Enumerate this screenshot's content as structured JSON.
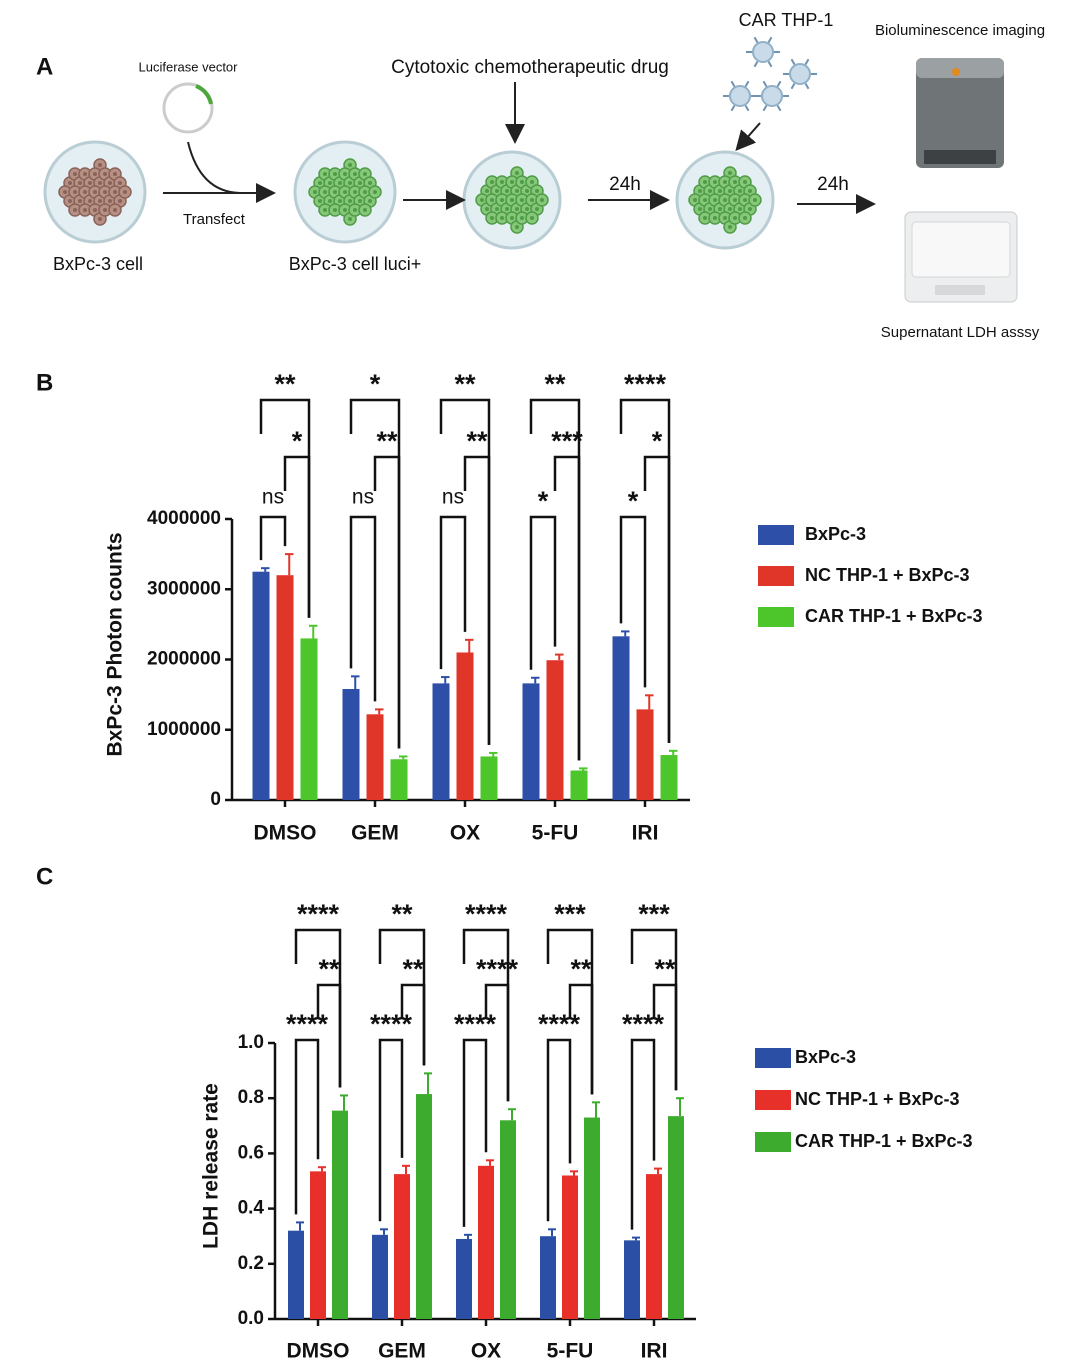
{
  "panel_labels": [
    "A",
    "B",
    "C"
  ],
  "diagram": {
    "luciferase": "Luciferase vector",
    "transfect": "Transfect",
    "cell": "BxPc-3 cell",
    "cell_luci": "BxPc-3 cell luci+",
    "drug": "Cytotoxic chemotherapeutic drug",
    "time1": "24h",
    "time2": "24h",
    "car": "CAR  THP-1",
    "imaging": "Bioluminescence imaging",
    "ldh": "Supernatant LDH asssy"
  },
  "chart_data": [
    {
      "type": "bar",
      "ylabel": "BxPc-3  Photon counts",
      "categories": [
        "DMSO",
        "GEM",
        "OX",
        "5-FU",
        "IRI"
      ],
      "series": [
        {
          "name": "BxPc-3",
          "color": "#2e4fa8",
          "values": [
            3250000,
            1580000,
            1660000,
            1660000,
            2330000
          ],
          "errors": [
            50000,
            180000,
            90000,
            80000,
            70000
          ]
        },
        {
          "name": "NC THP-1 + BxPc-3",
          "color": "#e0362a",
          "values": [
            3200000,
            1220000,
            2100000,
            1990000,
            1290000
          ],
          "errors": [
            300000,
            70000,
            180000,
            80000,
            200000
          ]
        },
        {
          "name": "CAR THP-1 + BxPc-3",
          "color": "#4cc62a",
          "values": [
            2300000,
            580000,
            620000,
            420000,
            640000
          ],
          "errors": [
            180000,
            40000,
            50000,
            30000,
            60000
          ]
        }
      ],
      "significance": [
        [
          "**",
          "*",
          "ns"
        ],
        [
          "*",
          "**",
          "ns"
        ],
        [
          "**",
          "**",
          "ns"
        ],
        [
          "**",
          "***",
          "*"
        ],
        [
          "****",
          "*",
          "*"
        ]
      ],
      "ylim": [
        0,
        4000000
      ],
      "yticks": [
        0,
        1000000,
        2000000,
        3000000,
        4000000
      ]
    },
    {
      "type": "bar",
      "ylabel": "LDH release rate",
      "categories": [
        "DMSO",
        "GEM",
        "OX",
        "5-FU",
        "IRI"
      ],
      "series": [
        {
          "name": "BxPc-3",
          "color": "#2a4fa5",
          "values": [
            0.32,
            0.305,
            0.29,
            0.3,
            0.285
          ],
          "errors": [
            0.03,
            0.02,
            0.015,
            0.025,
            0.01
          ]
        },
        {
          "name": "NC THP-1 + BxPc-3",
          "color": "#e8302a",
          "values": [
            0.535,
            0.525,
            0.555,
            0.52,
            0.525
          ],
          "errors": [
            0.015,
            0.03,
            0.02,
            0.015,
            0.02
          ]
        },
        {
          "name": "CAR THP-1 + BxPc-3",
          "color": "#3dab2e",
          "values": [
            0.755,
            0.815,
            0.72,
            0.73,
            0.735
          ],
          "errors": [
            0.055,
            0.075,
            0.04,
            0.055,
            0.065
          ]
        }
      ],
      "significance": [
        [
          "****",
          "**",
          "****"
        ],
        [
          "**",
          "**",
          "****"
        ],
        [
          "****",
          "****",
          "****"
        ],
        [
          "***",
          "**",
          "****"
        ],
        [
          "***",
          "**",
          "****"
        ]
      ],
      "ylim": [
        0,
        1
      ],
      "yticks": [
        {
          "value": 0,
          "label": "0.0"
        },
        0.2,
        0.4,
        0.6,
        0.8,
        {
          "value": 1,
          "label": "1.0"
        }
      ]
    }
  ]
}
